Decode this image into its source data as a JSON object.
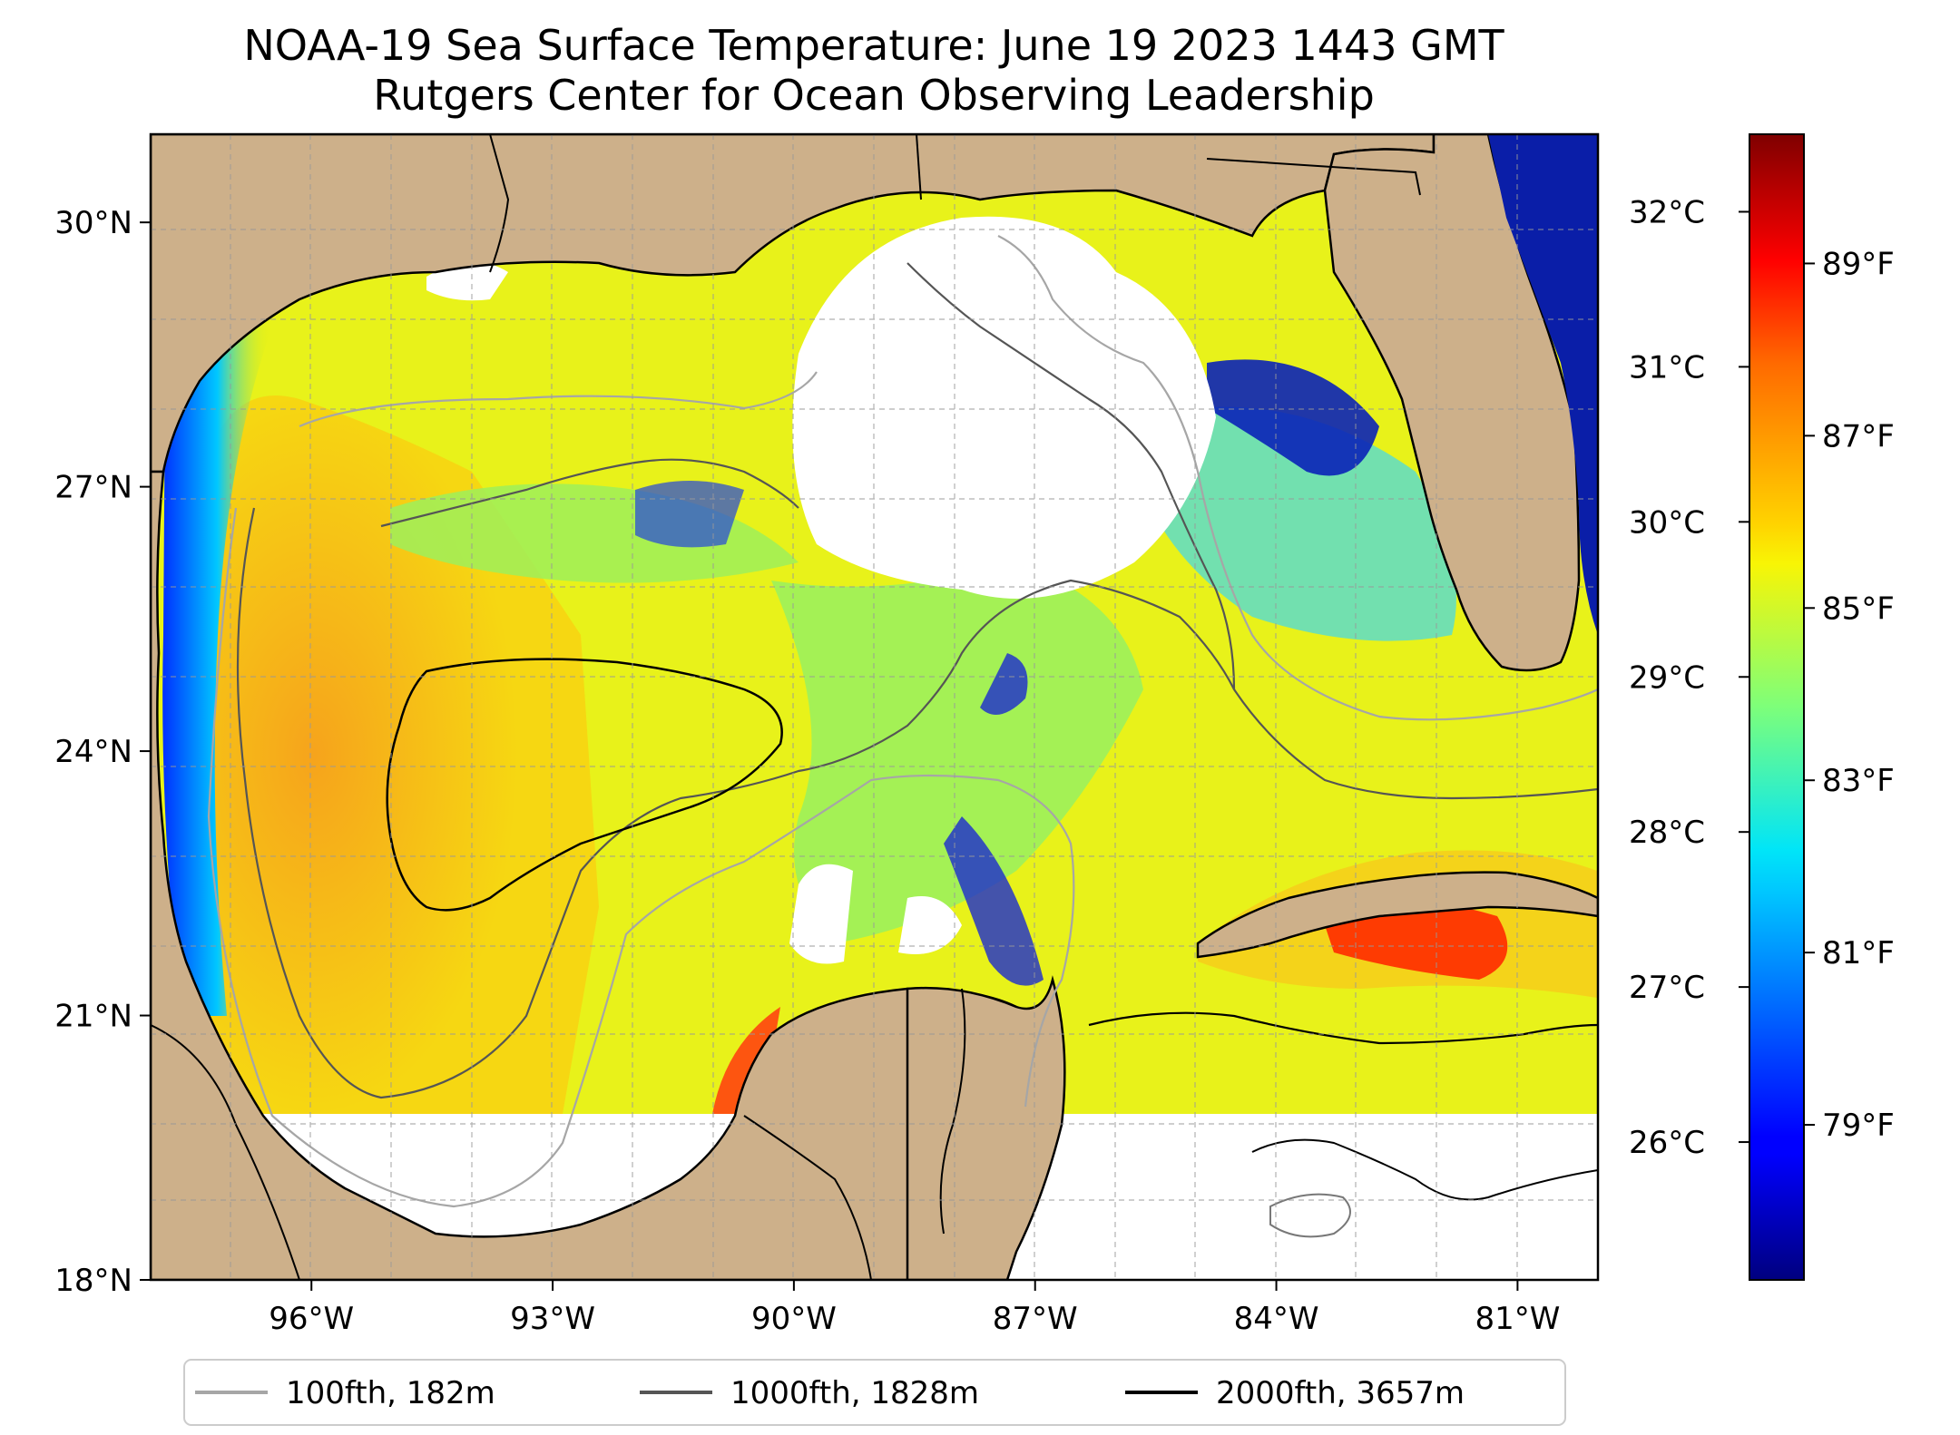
{
  "title": {
    "line1": "NOAA-19 Sea Surface Temperature: June 19 2023 1443 GMT",
    "line2": "Rutgers Center for Ocean Observing Leadership"
  },
  "map": {
    "lon_range": [
      -98.0,
      -80.0
    ],
    "lat_range": [
      18.0,
      31.0
    ],
    "lat_ticks": [
      {
        "value": 18,
        "label": "18°N"
      },
      {
        "value": 21,
        "label": "21°N"
      },
      {
        "value": 24,
        "label": "24°N"
      },
      {
        "value": 27,
        "label": "27°N"
      },
      {
        "value": 30,
        "label": "30°N"
      }
    ],
    "lon_ticks": [
      {
        "value": -96,
        "label": "96°W"
      },
      {
        "value": -93,
        "label": "93°W"
      },
      {
        "value": -90,
        "label": "90°W"
      },
      {
        "value": -87,
        "label": "87°W"
      },
      {
        "value": -84,
        "label": "84°W"
      },
      {
        "value": -81,
        "label": "81°W"
      }
    ],
    "grid": true,
    "land_color": "#cdb08a",
    "no_data_color": "#ffffff"
  },
  "colorbar": {
    "colormap": "jet",
    "celsius_ticks": [
      {
        "value": 26,
        "label": "26°C"
      },
      {
        "value": 27,
        "label": "27°C"
      },
      {
        "value": 28,
        "label": "28°C"
      },
      {
        "value": 29,
        "label": "29°C"
      },
      {
        "value": 30,
        "label": "30°C"
      },
      {
        "value": 31,
        "label": "31°C"
      },
      {
        "value": 32,
        "label": "32°C"
      }
    ],
    "fahrenheit_ticks": [
      {
        "value": 79,
        "label": "79°F"
      },
      {
        "value": 81,
        "label": "81°F"
      },
      {
        "value": 83,
        "label": "83°F"
      },
      {
        "value": 85,
        "label": "85°F"
      },
      {
        "value": 87,
        "label": "87°F"
      },
      {
        "value": 89,
        "label": "89°F"
      }
    ]
  },
  "legend": {
    "position": "bottom",
    "items": [
      {
        "label": "100fth, 182m",
        "color": "#a6a6a6"
      },
      {
        "label": "1000fth, 1828m",
        "color": "#555555"
      },
      {
        "label": "2000fth, 3657m",
        "color": "#000000"
      }
    ]
  }
}
